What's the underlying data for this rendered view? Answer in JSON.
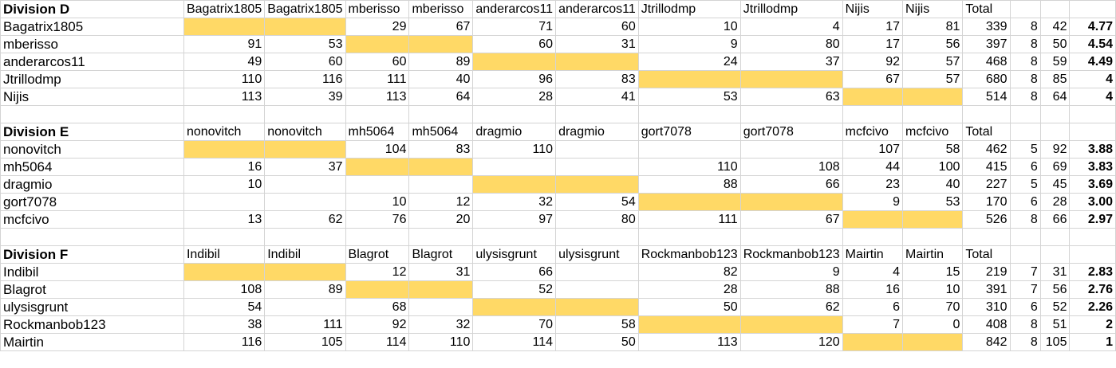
{
  "sections": [
    {
      "title": "Division D",
      "headers": [
        "Bagatrix1805",
        "Bagatrix1805",
        "mberisso",
        "mberisso",
        "anderarcos11",
        "anderarcos11",
        "Jtrillodmp",
        "Jtrillodmp",
        "Nijis",
        "Nijis"
      ],
      "total_label": "Total",
      "rows": [
        {
          "name": "Bagatrix1805",
          "cells": [
            "",
            "",
            "29",
            "67",
            "71",
            "60",
            "10",
            "4",
            "17",
            "81"
          ],
          "total": "339",
          "games": "8",
          "c2": "42",
          "avg": "4.77"
        },
        {
          "name": "mberisso",
          "cells": [
            "91",
            "53",
            "",
            "",
            "60",
            "31",
            "9",
            "80",
            "17",
            "56"
          ],
          "total": "397",
          "games": "8",
          "c2": "50",
          "avg": "4.54"
        },
        {
          "name": "anderarcos11",
          "cells": [
            "49",
            "60",
            "60",
            "89",
            "",
            "",
            "24",
            "37",
            "92",
            "57"
          ],
          "total": "468",
          "games": "8",
          "c2": "59",
          "avg": "4.49"
        },
        {
          "name": "Jtrillodmp",
          "cells": [
            "110",
            "116",
            "111",
            "40",
            "96",
            "83",
            "",
            "",
            "67",
            "57"
          ],
          "total": "680",
          "games": "8",
          "c2": "85",
          "avg": "4"
        },
        {
          "name": "Nijis",
          "cells": [
            "113",
            "39",
            "113",
            "64",
            "28",
            "41",
            "53",
            "63",
            "",
            ""
          ],
          "total": "514",
          "games": "8",
          "c2": "64",
          "avg": "4"
        }
      ]
    },
    {
      "title": "Division E",
      "headers": [
        "nonovitch",
        "nonovitch",
        "mh5064",
        "mh5064",
        "dragmio",
        "dragmio",
        "gort7078",
        "gort7078",
        "mcfcivo",
        "mcfcivo"
      ],
      "total_label": "Total",
      "rows": [
        {
          "name": "nonovitch",
          "cells": [
            "",
            "",
            "104",
            "83",
            "110",
            "",
            "",
            "",
            "107",
            "58"
          ],
          "total": "462",
          "games": "5",
          "c2": "92",
          "avg": "3.88"
        },
        {
          "name": "mh5064",
          "cells": [
            "16",
            "37",
            "",
            "",
            "",
            "",
            "110",
            "108",
            "44",
            "100"
          ],
          "total": "415",
          "games": "6",
          "c2": "69",
          "avg": "3.83"
        },
        {
          "name": "dragmio",
          "cells": [
            "10",
            "",
            "",
            "",
            "",
            "",
            "88",
            "66",
            "23",
            "40"
          ],
          "total": "227",
          "games": "5",
          "c2": "45",
          "avg": "3.69"
        },
        {
          "name": "gort7078",
          "cells": [
            "",
            "",
            "10",
            "12",
            "32",
            "54",
            "",
            "",
            "9",
            "53"
          ],
          "total": "170",
          "games": "6",
          "c2": "28",
          "avg": "3.00"
        },
        {
          "name": "mcfcivo",
          "cells": [
            "13",
            "62",
            "76",
            "20",
            "97",
            "80",
            "111",
            "67",
            "",
            ""
          ],
          "total": "526",
          "games": "8",
          "c2": "66",
          "avg": "2.97"
        }
      ]
    },
    {
      "title": "Division F",
      "headers": [
        "Indibil",
        "Indibil",
        "Blagrot",
        "Blagrot",
        "ulysisgrunt",
        "ulysisgrunt",
        "Rockmanbob123",
        "Rockmanbob123",
        "Mairtin",
        "Mairtin"
      ],
      "total_label": "Total",
      "rows": [
        {
          "name": "Indibil",
          "cells": [
            "",
            "",
            "12",
            "31",
            "66",
            "",
            "82",
            "9",
            "4",
            "15"
          ],
          "total": "219",
          "games": "7",
          "c2": "31",
          "avg": "2.83"
        },
        {
          "name": "Blagrot",
          "cells": [
            "108",
            "89",
            "",
            "",
            "52",
            "",
            "28",
            "88",
            "16",
            "10"
          ],
          "total": "391",
          "games": "7",
          "c2": "56",
          "avg": "2.76"
        },
        {
          "name": "ulysisgrunt",
          "cells": [
            "54",
            "",
            "68",
            "",
            "",
            "",
            "50",
            "62",
            "6",
            "70"
          ],
          "total": "310",
          "games": "6",
          "c2": "52",
          "avg": "2.26"
        },
        {
          "name": "Rockmanbob123",
          "cells": [
            "38",
            "111",
            "92",
            "32",
            "70",
            "58",
            "",
            "",
            "7",
            "0"
          ],
          "total": "408",
          "games": "8",
          "c2": "51",
          "avg": "2"
        },
        {
          "name": "Mairtin",
          "cells": [
            "116",
            "105",
            "114",
            "110",
            "114",
            "50",
            "113",
            "120",
            "",
            ""
          ],
          "total": "842",
          "games": "8",
          "c2": "105",
          "avg": "1"
        }
      ]
    }
  ],
  "highlight_color": "#ffd966"
}
